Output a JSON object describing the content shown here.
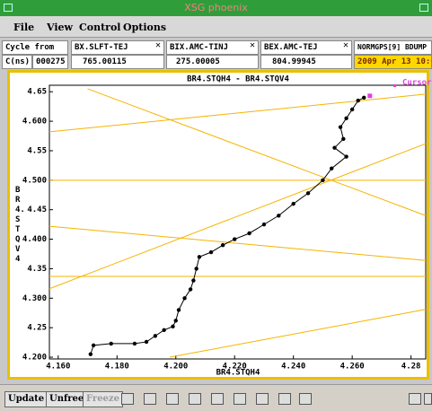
{
  "window": {
    "title": "XSG phoenix"
  },
  "menu": [
    "File",
    "View",
    "Control",
    "Options"
  ],
  "cycle": {
    "label": "Cycle from",
    "unit": "C(ns)",
    "value": "000275"
  },
  "signals": [
    {
      "name": "BX.SLFT-TEJ",
      "value": "765.00115"
    },
    {
      "name": "BIX.AMC-TINJ",
      "value": "275.00005"
    },
    {
      "name": "BEX.AMC-TEJ",
      "value": "804.99945"
    }
  ],
  "status": {
    "name": "NORMGPS[9] BDUMP",
    "time": "2009 Apr 13 10:00:36"
  },
  "buttons": [
    "Update",
    "Unfreeze",
    "Freeze"
  ],
  "chart_data": {
    "type": "scatter",
    "title": "BR4.STQH4  -  BR4.STQV4",
    "x_label": "BR4.STQH4",
    "y_label": "BR4.STQV4",
    "x": [
      4.171,
      4.172,
      4.178,
      4.186,
      4.19,
      4.193,
      4.196,
      4.199,
      4.2,
      4.201,
      4.203,
      4.205,
      4.206,
      4.207,
      4.208,
      4.212,
      4.216,
      4.22,
      4.225,
      4.23,
      4.235,
      4.24,
      4.245,
      4.25,
      4.253,
      4.258,
      4.254,
      4.257,
      4.256,
      4.258,
      4.26,
      4.262,
      4.264
    ],
    "values": [
      4.205,
      4.22,
      4.223,
      4.223,
      4.226,
      4.236,
      4.246,
      4.252,
      4.262,
      4.28,
      4.3,
      4.315,
      4.33,
      4.35,
      4.37,
      4.378,
      4.39,
      4.4,
      4.41,
      4.425,
      4.44,
      4.46,
      4.478,
      4.5,
      4.52,
      4.54,
      4.555,
      4.57,
      4.59,
      4.605,
      4.62,
      4.635,
      4.64
    ],
    "color": "#000000",
    "cursor": {
      "name": "Cursor",
      "x": 4.266,
      "y": 4.643,
      "color": "#e040e0"
    },
    "reference_lines": [
      {
        "x": [
          4.157,
          4.285
        ],
        "y": [
          4.582,
          4.646
        ]
      },
      {
        "x": [
          4.157,
          4.285
        ],
        "y": [
          4.5,
          4.5
        ]
      },
      {
        "x": [
          4.17,
          4.285
        ],
        "y": [
          4.655,
          4.44
        ]
      },
      {
        "x": [
          4.157,
          4.285
        ],
        "y": [
          4.316,
          4.562
        ]
      },
      {
        "x": [
          4.157,
          4.285
        ],
        "y": [
          4.422,
          4.364
        ]
      },
      {
        "x": [
          4.157,
          4.285
        ],
        "y": [
          4.337,
          4.337
        ]
      },
      {
        "x": [
          4.198,
          4.285
        ],
        "y": [
          4.2,
          4.281
        ]
      }
    ],
    "line_color": "#f5b400",
    "xlim": [
      4.157,
      4.285
    ],
    "ylim": [
      4.197,
      4.661
    ],
    "xticks": [
      {
        "value": 4.16,
        "label": "4.160"
      },
      {
        "value": 4.18,
        "label": "4.180"
      },
      {
        "value": 4.2,
        "label": "4.200"
      },
      {
        "value": 4.22,
        "label": "4.220"
      },
      {
        "value": 4.24,
        "label": "4.240"
      },
      {
        "value": 4.26,
        "label": "4.260"
      },
      4.28
    ],
    "yticks": [
      {
        "value": 4.2,
        "label": "4.200"
      },
      4.25,
      {
        "value": 4.3,
        "label": "4.300"
      },
      4.35,
      {
        "value": 4.4,
        "label": "4.400"
      },
      4.45,
      {
        "value": 4.5,
        "label": "4.500"
      },
      4.55,
      {
        "value": 4.6,
        "label": "4.600"
      },
      4.65
    ]
  }
}
